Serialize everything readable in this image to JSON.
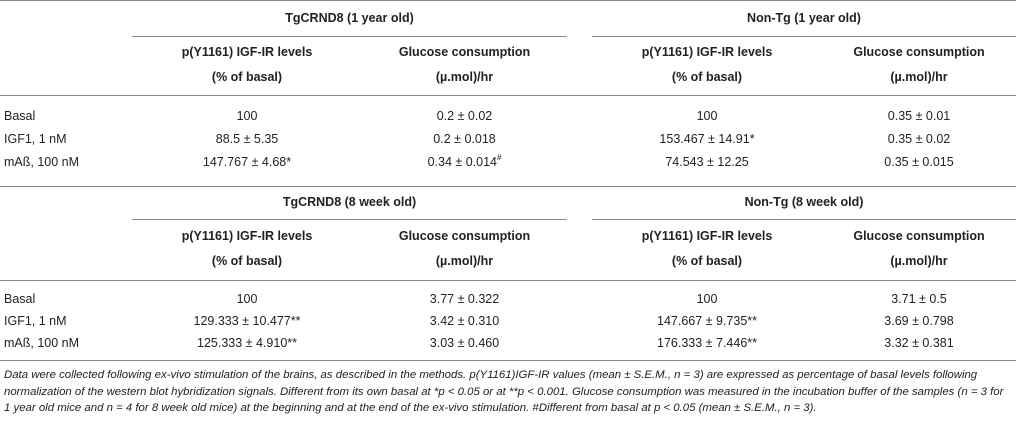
{
  "table": {
    "sections": [
      {
        "groups": [
          "TgCRND8 (1 year old)",
          "Non-Tg (1 year old)"
        ],
        "col1": [
          "p(Y1161) IGF-IR levels",
          "(% of basal)"
        ],
        "col2": [
          "Glucose consumption",
          "(µ.mol)/hr"
        ],
        "rows": [
          {
            "label": "Basal",
            "cells": [
              "100",
              "0.2 ± 0.02",
              "100",
              "0.35 ± 0.01"
            ]
          },
          {
            "label": "IGF1, 1 nM",
            "cells": [
              "88.5 ± 5.35",
              "0.2 ± 0.018",
              "153.467 ± 14.91*",
              "0.35 ± 0.02"
            ]
          },
          {
            "label": "mAß, 100 nM",
            "cells": [
              "147.767 ± 4.68*",
              "0.34 ± 0.014",
              "74.543 ± 12.25",
              "0.35 ± 0.015"
            ]
          }
        ],
        "sup_mark": "#"
      },
      {
        "groups": [
          "TgCRND8 (8 week old)",
          "Non-Tg (8 week old)"
        ],
        "col1": [
          "p(Y1161) IGF-IR levels",
          "(% of basal)"
        ],
        "col2": [
          "Glucose consumption",
          "(µ.mol)/hr"
        ],
        "rows": [
          {
            "label": "Basal",
            "cells": [
              "100",
              "3.77 ± 0.322",
              "100",
              "3.71 ± 0.5"
            ]
          },
          {
            "label": "IGF1, 1 nM",
            "cells": [
              "129.333 ± 10.477**",
              "3.42 ± 0.310",
              "147.667 ± 9.735**",
              "3.69 ± 0.798"
            ]
          },
          {
            "label": "mAß, 100 nM",
            "cells": [
              "125.333 ± 4.910**",
              "3.03 ± 0.460",
              "176.333 ± 7.446**",
              "3.32 ± 0.381"
            ]
          }
        ]
      }
    ]
  },
  "footnote": "Data were collected following ex-vivo stimulation of the brains, as described in the methods. p(Y1161)IGF-IR values (mean ± S.E.M., n = 3) are expressed as percentage of basal levels following normalization of the western blot hybridization signals. Different from its own basal at *p < 0.05 or at **p < 0.001. Glucose consumption was measured in the incubation buffer of the samples (n = 3 for 1 year old mice and n = 4 for 8 week old mice) at the beginning and at the end of the ex-vivo stimulation. #Different from basal at p < 0.05 (mean ± S.E.M., n = 3)."
}
